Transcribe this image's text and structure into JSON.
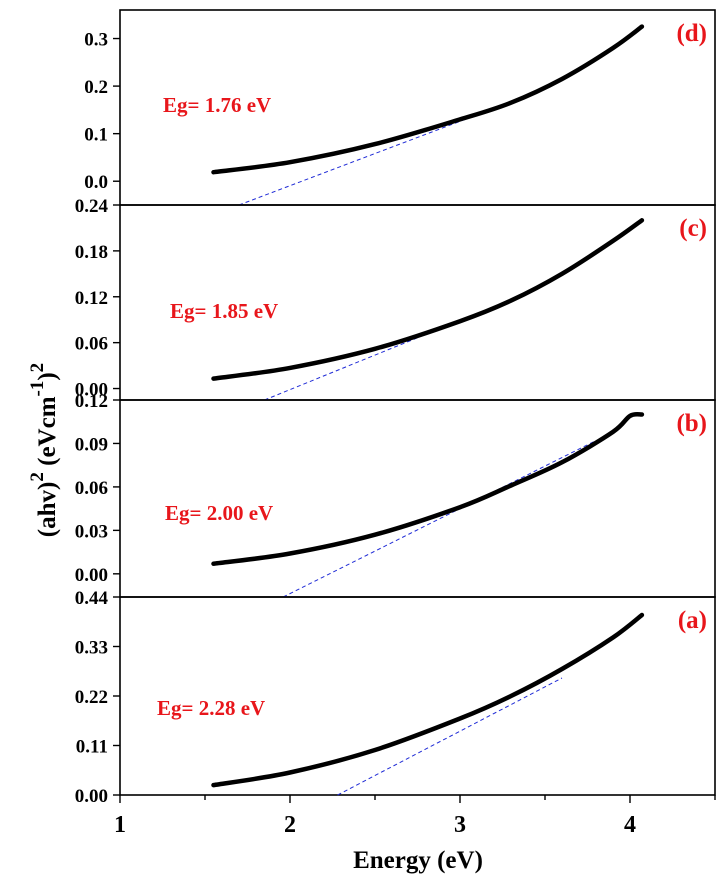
{
  "colors": {
    "curve": "#000000",
    "fit_line": "#1f2bd6",
    "annotation": "#e8161b",
    "axes": "#000000"
  },
  "chart_data": {
    "type": "line",
    "xlabel": "Energy (eV)",
    "ylabel": "(ahν)2 (eVcm-1)2",
    "xlim": [
      1,
      4.5
    ],
    "x_ticks": [
      "1",
      "2",
      "3",
      "4"
    ],
    "shared_x_axis": true,
    "grid": false,
    "panels": [
      {
        "id": "d",
        "label": "(d)",
        "annotation": "Eg= 1.76 eV",
        "ylim": [
          -0.05,
          0.36
        ],
        "y_ticks": [
          "0.0",
          "0.1",
          "0.2",
          "0.3"
        ],
        "y_tick_values": [
          0,
          0.1,
          0.2,
          0.3
        ],
        "x": [
          1.55,
          2.0,
          2.5,
          3.0,
          3.3,
          3.6,
          3.9,
          4.07
        ],
        "y": [
          0.019,
          0.04,
          0.078,
          0.13,
          0.165,
          0.215,
          0.28,
          0.325
        ],
        "fit_line": {
          "x": [
            1.7,
            3.4
          ],
          "y": [
            -0.05,
            0.18
          ]
        }
      },
      {
        "id": "c",
        "label": "(c)",
        "annotation": "Eg= 1.85 eV",
        "ylim": [
          -0.015,
          0.24
        ],
        "y_ticks": [
          "0.00",
          "0.06",
          "0.12",
          "0.18",
          "0.24"
        ],
        "y_tick_values": [
          0,
          0.06,
          0.12,
          0.18,
          0.24
        ],
        "x": [
          1.55,
          2.0,
          2.5,
          3.0,
          3.3,
          3.6,
          3.9,
          4.07
        ],
        "y": [
          0.013,
          0.027,
          0.052,
          0.088,
          0.115,
          0.15,
          0.193,
          0.22
        ],
        "fit_line": {
          "x": [
            1.85,
            3.1
          ],
          "y": [
            -0.015,
            0.098
          ]
        }
      },
      {
        "id": "b",
        "label": "(b)",
        "annotation": "Eg= 2.00 eV",
        "ylim": [
          -0.016,
          0.12
        ],
        "y_ticks": [
          "0.00",
          "0.03",
          "0.06",
          "0.09",
          "0.12"
        ],
        "y_tick_values": [
          0,
          0.03,
          0.06,
          0.09,
          0.12
        ],
        "x": [
          1.55,
          2.0,
          2.5,
          3.0,
          3.3,
          3.6,
          3.9,
          4.0,
          4.07
        ],
        "y": [
          0.007,
          0.014,
          0.027,
          0.046,
          0.061,
          0.077,
          0.098,
          0.109,
          0.11
        ],
        "fit_line": {
          "x": [
            1.96,
            3.8
          ],
          "y": [
            -0.016,
            0.092
          ]
        }
      },
      {
        "id": "a",
        "label": "(a)",
        "annotation": "Eg= 2.28 eV",
        "ylim": [
          0,
          0.44
        ],
        "y_ticks": [
          "0.00",
          "0.11",
          "0.22",
          "0.33",
          "0.44"
        ],
        "y_tick_values": [
          0,
          0.11,
          0.22,
          0.33,
          0.44
        ],
        "x": [
          1.55,
          2.0,
          2.5,
          3.0,
          3.3,
          3.6,
          3.9,
          4.07
        ],
        "y": [
          0.022,
          0.05,
          0.1,
          0.17,
          0.22,
          0.28,
          0.35,
          0.4
        ],
        "fit_line": {
          "x": [
            2.28,
            3.6
          ],
          "y": [
            0.0,
            0.26
          ]
        }
      }
    ]
  }
}
